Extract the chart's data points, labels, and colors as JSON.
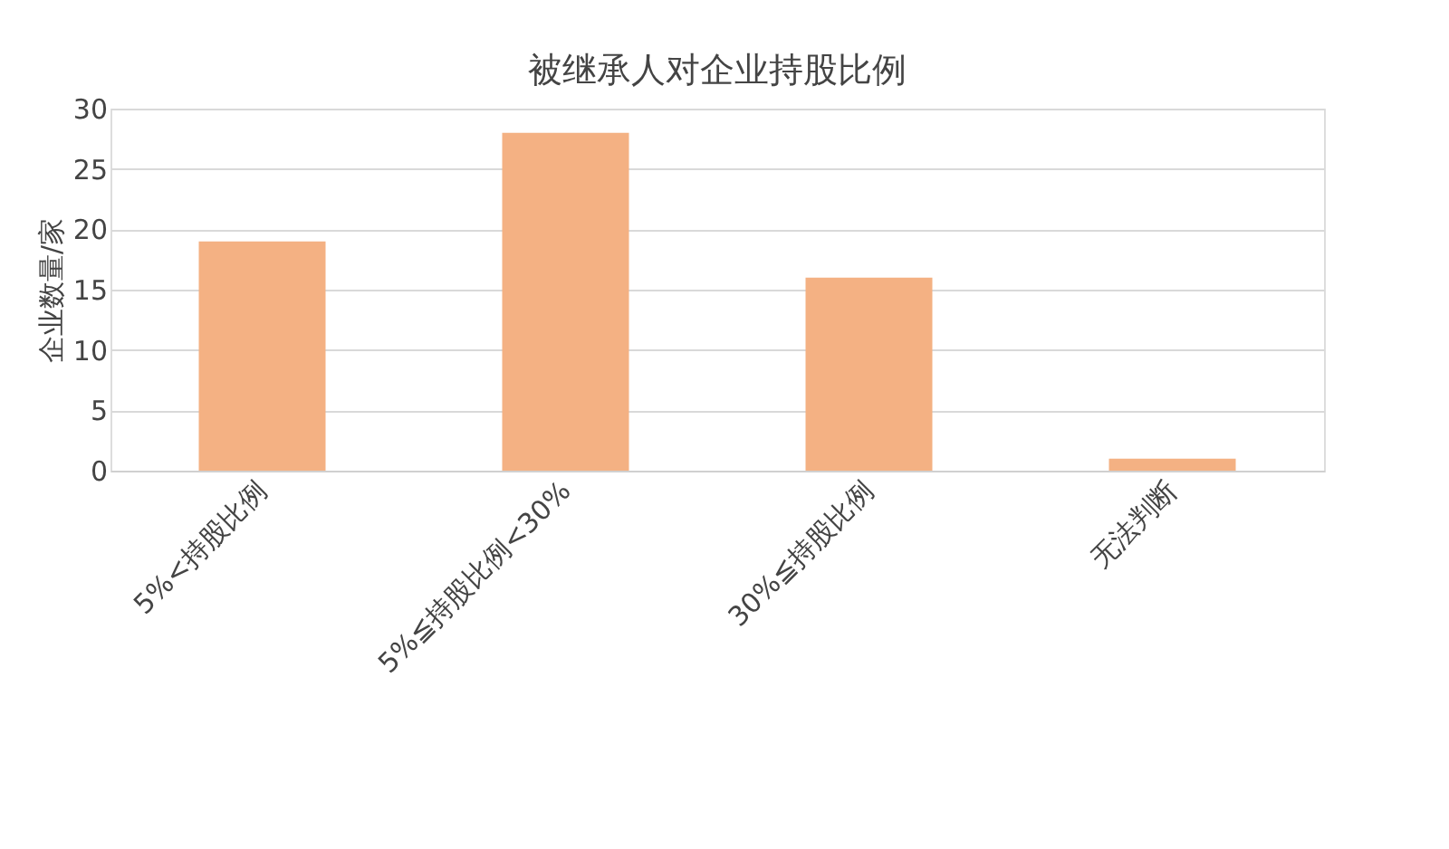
{
  "chart_data": {
    "type": "bar",
    "title": "被继承人对企业持股比例",
    "ylabel": "企业数量/家",
    "categories": [
      "5%<持股比例",
      "5%≦持股比例<30%",
      "30%≦持股比例",
      "无法判断"
    ],
    "values": [
      19,
      28,
      16,
      1
    ],
    "color": "#f4b183",
    "ylim": [
      0,
      30
    ],
    "yticks": [
      0,
      5,
      10,
      15,
      20,
      25,
      30
    ],
    "grid": "y"
  }
}
